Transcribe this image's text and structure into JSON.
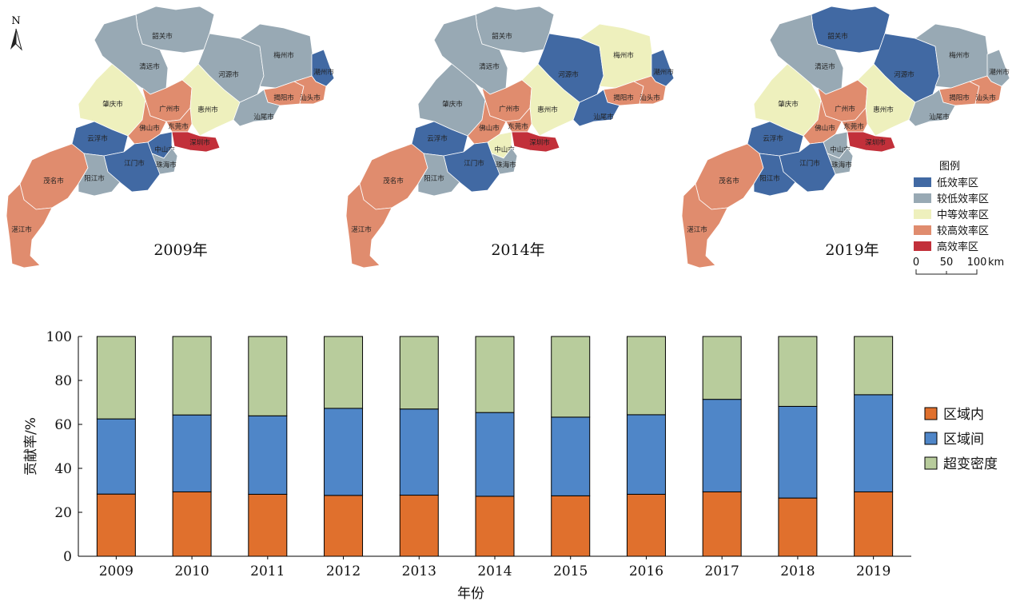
{
  "maps": {
    "north_label": "N",
    "year_labels": [
      "2009年",
      "2014年",
      "2019年"
    ],
    "legend": {
      "title": "图例",
      "items": [
        {
          "label": "低效率区",
          "color": "#4169a3"
        },
        {
          "label": "较低效率区",
          "color": "#98a9b4"
        },
        {
          "label": "中等效率区",
          "color": "#eef0bd"
        },
        {
          "label": "较高效率区",
          "color": "#e08c6e"
        },
        {
          "label": "高效率区",
          "color": "#c2303a"
        }
      ]
    },
    "scale": {
      "ticks": [
        "0",
        "50",
        "100"
      ],
      "unit": "km"
    },
    "regions": [
      {
        "name": "韶关市",
        "c": [
          1,
          1,
          0
        ]
      },
      {
        "name": "清远市",
        "c": [
          1,
          1,
          1
        ]
      },
      {
        "name": "河源市",
        "c": [
          1,
          0,
          0
        ]
      },
      {
        "name": "梅州市",
        "c": [
          1,
          2,
          1
        ]
      },
      {
        "name": "潮州市",
        "c": [
          0,
          0,
          1
        ]
      },
      {
        "name": "肇庆市",
        "c": [
          2,
          1,
          2
        ]
      },
      {
        "name": "广州市",
        "c": [
          3,
          3,
          3
        ]
      },
      {
        "name": "惠州市",
        "c": [
          2,
          2,
          2
        ]
      },
      {
        "name": "揭阳市",
        "c": [
          3,
          3,
          3
        ]
      },
      {
        "name": "汕头市",
        "c": [
          3,
          3,
          3
        ]
      },
      {
        "name": "汕尾市",
        "c": [
          1,
          0,
          1
        ]
      },
      {
        "name": "佛山市",
        "c": [
          3,
          3,
          3
        ]
      },
      {
        "name": "东莞市",
        "c": [
          3,
          3,
          3
        ]
      },
      {
        "name": "云浮市",
        "c": [
          0,
          0,
          0
        ]
      },
      {
        "name": "中山市",
        "c": [
          0,
          2,
          1
        ]
      },
      {
        "name": "深圳市",
        "c": [
          4,
          4,
          4
        ]
      },
      {
        "name": "江门市",
        "c": [
          0,
          0,
          0
        ]
      },
      {
        "name": "珠海市",
        "c": [
          1,
          1,
          1
        ]
      },
      {
        "name": "茂名市",
        "c": [
          3,
          3,
          3
        ]
      },
      {
        "name": "阳江市",
        "c": [
          1,
          1,
          0
        ]
      },
      {
        "name": "湛江市",
        "c": [
          3,
          3,
          3
        ]
      }
    ]
  },
  "chart_data": {
    "type": "bar",
    "stacked": true,
    "categories": [
      "2009",
      "2010",
      "2011",
      "2012",
      "2013",
      "2014",
      "2015",
      "2016",
      "2017",
      "2018",
      "2019"
    ],
    "series": [
      {
        "name": "区域内",
        "color": "#e0702d",
        "values": [
          28.3,
          29.3,
          28.2,
          27.7,
          27.8,
          27.3,
          27.5,
          28.2,
          29.3,
          26.5,
          29.3
        ]
      },
      {
        "name": "区域间",
        "color": "#4f86c8",
        "values": [
          34.2,
          35.0,
          35.7,
          39.6,
          39.2,
          38.1,
          35.8,
          36.2,
          42.1,
          41.7,
          44.2
        ]
      },
      {
        "name": "超变密度",
        "color": "#b8cc9c",
        "values": [
          37.5,
          35.7,
          36.1,
          32.7,
          33.0,
          34.6,
          36.7,
          35.6,
          28.6,
          31.8,
          26.5
        ]
      }
    ],
    "xlabel": "年份",
    "ylabel": "贡献率/%",
    "ylim": [
      0,
      100
    ],
    "yticks": [
      "0",
      "20",
      "40",
      "60",
      "80",
      "100"
    ],
    "legend_position": "right"
  }
}
